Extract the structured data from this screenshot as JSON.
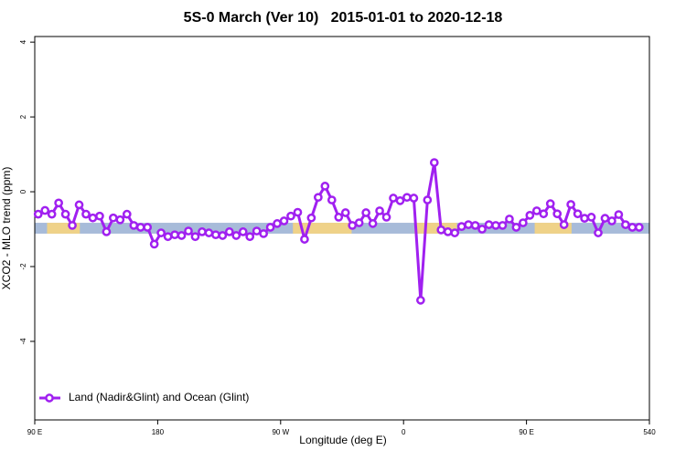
{
  "chart_data": {
    "type": "line",
    "title": "5S-0 March (Ver 10)   2015-01-01 to 2020-12-18",
    "x_label": "Longitude (deg E)",
    "y_label": "XCO2 - MLO trend (ppm)",
    "xlim": [
      90,
      540
    ],
    "xticks": [
      {
        "value": 90,
        "label": "90 E"
      },
      180,
      {
        "value": 270,
        "label": "90 W"
      },
      {
        "value": 360,
        "label": "0"
      },
      {
        "value": 450,
        "label": "90 E"
      },
      540
    ],
    "ylim": [
      -6.1,
      4.15
    ],
    "yticks": [
      4,
      2,
      0,
      -2,
      -4
    ],
    "band": {
      "values": [
        -0.83,
        -1.12
      ],
      "color": "#a7bbd9"
    },
    "land_segments": {
      "color": "#f7d57e",
      "ranges": [
        [
          99,
          123
        ],
        [
          279,
          322
        ],
        [
          368,
          399
        ],
        [
          456,
          483
        ]
      ]
    },
    "legend": "bottom-left",
    "x": [
      92.5,
      97.5,
      102.5,
      107.5,
      112.5,
      117.5,
      122.5,
      127.5,
      132.5,
      137.5,
      142.5,
      147.5,
      152.5,
      157.5,
      162.5,
      167.5,
      172.5,
      177.5,
      182.5,
      187.5,
      192.5,
      197.5,
      202.5,
      207.5,
      212.5,
      217.5,
      222.5,
      227.5,
      232.5,
      237.5,
      242.5,
      247.5,
      252.5,
      257.5,
      262.5,
      267.5,
      272.5,
      277.5,
      282.5,
      287.5,
      292.5,
      297.5,
      302.5,
      307.5,
      312.5,
      317.5,
      322.5,
      327.5,
      332.5,
      337.5,
      342.5,
      347.5,
      352.5,
      357.5,
      362.5,
      367.5,
      372.5,
      377.5,
      382.5,
      387.5,
      392.5,
      397.5,
      402.5,
      407.5,
      412.5,
      417.5,
      422.5,
      427.5,
      432.5,
      437.5,
      442.5,
      447.5,
      452.5,
      457.5,
      462.5,
      467.5,
      472.5,
      477.5,
      482.5,
      487.5,
      492.5,
      497.5,
      502.5,
      507.5,
      512.5,
      517.5,
      522.5,
      527.5,
      532.5
    ],
    "series": [
      {
        "name": "Land (Nadir&Glint) and Ocean (Glint)",
        "color": "#a020f0",
        "values": [
          -0.6,
          -0.5,
          -0.6,
          -0.3,
          -0.6,
          -0.9,
          -0.35,
          -0.6,
          -0.7,
          -0.65,
          -1.07,
          -0.7,
          -0.75,
          -0.6,
          -0.9,
          -0.95,
          -0.95,
          -1.4,
          -1.1,
          -1.2,
          -1.15,
          -1.17,
          -1.05,
          -1.2,
          -1.07,
          -1.1,
          -1.15,
          -1.17,
          -1.07,
          -1.17,
          -1.07,
          -1.2,
          -1.05,
          -1.12,
          -0.95,
          -0.85,
          -0.78,
          -0.65,
          -0.55,
          -1.27,
          -0.7,
          -0.15,
          0.15,
          -0.22,
          -0.68,
          -0.56,
          -0.9,
          -0.83,
          -0.56,
          -0.85,
          -0.51,
          -0.68,
          -0.17,
          -0.24,
          -0.15,
          -0.17,
          -2.9,
          -0.22,
          0.78,
          -1.02,
          -1.07,
          -1.1,
          -0.93,
          -0.88,
          -0.9,
          -1.0,
          -0.88,
          -0.9,
          -0.9,
          -0.73,
          -0.95,
          -0.83,
          -0.63,
          -0.51,
          -0.59,
          -0.32,
          -0.59,
          -0.88,
          -0.34,
          -0.59,
          -0.71,
          -0.68,
          -1.1,
          -0.71,
          -0.78,
          -0.61,
          -0.88,
          -0.95,
          -0.95
        ]
      }
    ]
  }
}
